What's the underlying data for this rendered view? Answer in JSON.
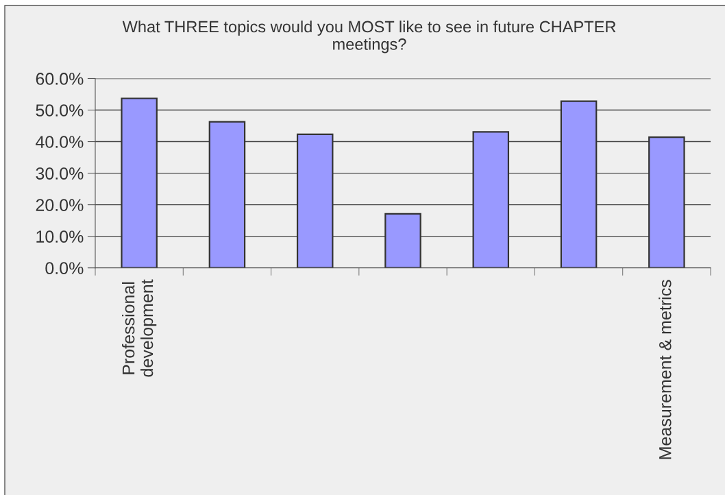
{
  "chart_data": {
    "type": "bar",
    "title": "What THREE topics would you MOST like to see in future CHAPTER\nmeetings?",
    "categories": [
      "Professional\ndevelopment",
      null,
      null,
      null,
      null,
      null,
      "Measurement & metrics"
    ],
    "values": [
      53.7,
      46.3,
      42.3,
      17.1,
      43.1,
      52.8,
      41.4
    ],
    "color": "#9999ff",
    "ylim": [
      0,
      60
    ],
    "yticks": [
      {
        "value": 0,
        "label": "0.0%"
      },
      {
        "value": 10,
        "label": "10.0%"
      },
      {
        "value": 20,
        "label": "20.0%"
      },
      {
        "value": 30,
        "label": "30.0%"
      },
      {
        "value": 40,
        "label": "40.0%"
      },
      {
        "value": 50,
        "label": "50.0%"
      },
      {
        "value": 60,
        "label": "60.0%"
      }
    ],
    "grid": "y"
  }
}
